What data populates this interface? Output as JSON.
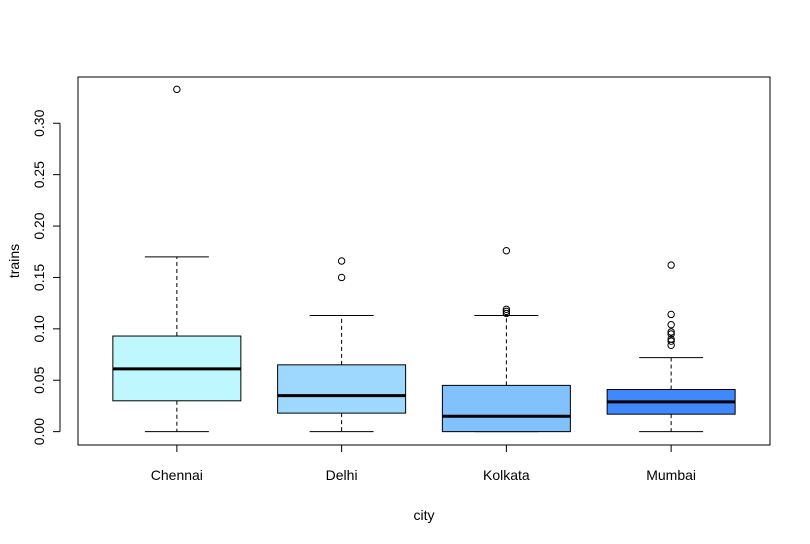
{
  "chart_data": {
    "type": "boxplot",
    "title": "",
    "xlabel": "city",
    "ylabel": "trains",
    "ylim": [
      -0.013,
      0.345
    ],
    "y_ticks": [
      0.0,
      0.05,
      0.1,
      0.15,
      0.2,
      0.25,
      0.3
    ],
    "y_tick_labels": [
      "0.00",
      "0.05",
      "0.10",
      "0.15",
      "0.20",
      "0.25",
      "0.30"
    ],
    "grid": false,
    "legend": "none",
    "categories": [
      "Chennai",
      "Delhi",
      "Kolkata",
      "Mumbai"
    ],
    "boxes": [
      {
        "category": "Chennai",
        "whisker_low": 0.0,
        "q1": 0.03,
        "median": 0.061,
        "q3": 0.093,
        "whisker_high": 0.17,
        "outliers": [
          0.333
        ],
        "color": "#bff7ff"
      },
      {
        "category": "Delhi",
        "whisker_low": 0.0,
        "q1": 0.018,
        "median": 0.035,
        "q3": 0.065,
        "whisker_high": 0.113,
        "outliers": [
          0.15,
          0.166
        ],
        "color": "#9fd8fe"
      },
      {
        "category": "Kolkata",
        "whisker_low": 0.0,
        "q1": 0.0,
        "median": 0.015,
        "q3": 0.045,
        "whisker_high": 0.113,
        "outliers": [
          0.115,
          0.117,
          0.119,
          0.176
        ],
        "color": "#80c1fe"
      },
      {
        "category": "Mumbai",
        "whisker_low": 0.0,
        "q1": 0.017,
        "median": 0.029,
        "q3": 0.041,
        "whisker_high": 0.072,
        "outliers": [
          0.084,
          0.088,
          0.09,
          0.095,
          0.097,
          0.104,
          0.114,
          0.162
        ],
        "color": "#3f89fd"
      }
    ]
  }
}
